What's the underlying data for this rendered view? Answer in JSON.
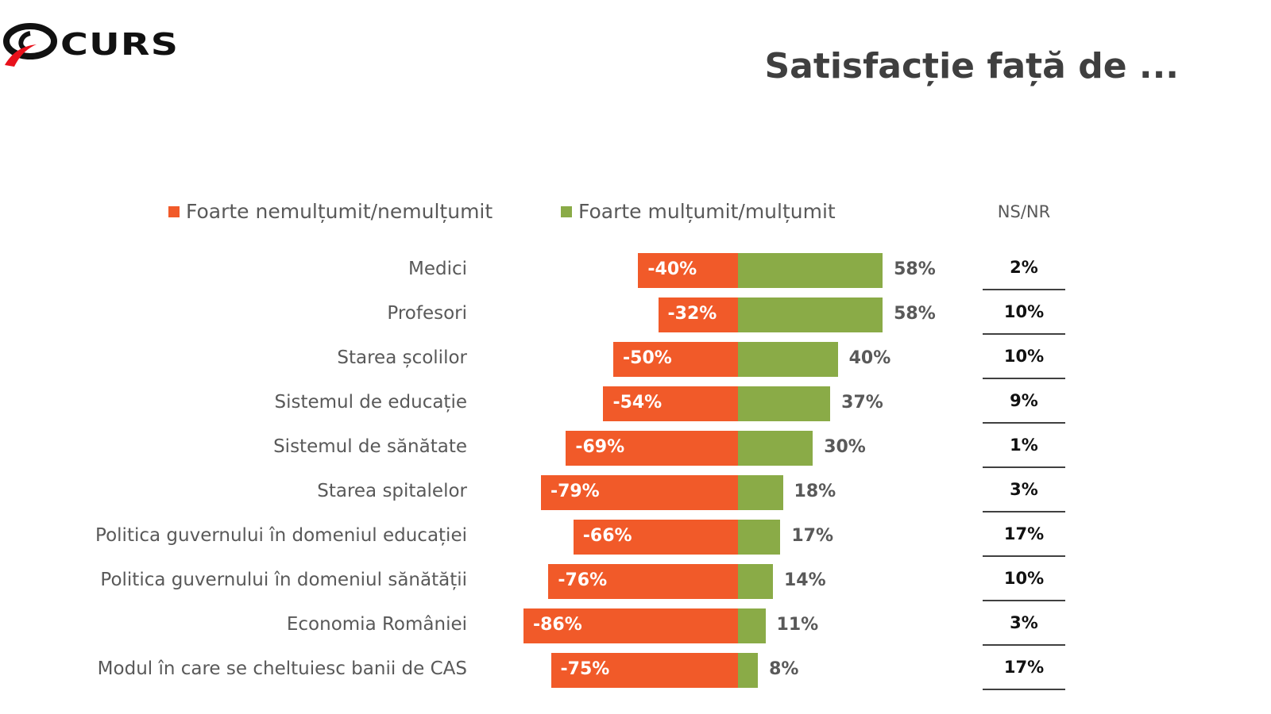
{
  "logo": {
    "text": "CURS"
  },
  "chart_data": {
    "type": "bar",
    "title": "Satisfacție față de ...",
    "legend": [
      "Foarte nemulțumit/nemulțumit",
      "Foarte mulțumit/mulțumit"
    ],
    "ns_header": "NS/NR",
    "colors": {
      "negative": "#f15a29",
      "positive": "#8aab47"
    },
    "categories": [
      "Medici",
      "Profesori",
      "Starea școlilor",
      "Sistemul de educație",
      "Sistemul de sănătate",
      "Starea spitalelor",
      "Politica guvernului în domeniul educației",
      "Politica guvernului în domeniul sănătății",
      "Economia României",
      "Modul în care se cheltuiesc banii de CAS"
    ],
    "series": [
      {
        "name": "Foarte nemulțumit/nemulțumit",
        "values": [
          -40,
          -32,
          -50,
          -54,
          -69,
          -79,
          -66,
          -76,
          -86,
          -75
        ]
      },
      {
        "name": "Foarte mulțumit/mulțumit",
        "values": [
          58,
          58,
          40,
          37,
          30,
          18,
          17,
          14,
          11,
          8
        ]
      },
      {
        "name": "NS/NR",
        "values": [
          2,
          10,
          10,
          9,
          1,
          3,
          17,
          10,
          3,
          17
        ]
      }
    ],
    "labels": {
      "neg": [
        "-40%",
        "-32%",
        "-50%",
        "-54%",
        "-69%",
        "-79%",
        "-66%",
        "-76%",
        "-86%",
        "-75%"
      ],
      "pos": [
        "58%",
        "58%",
        "40%",
        "37%",
        "30%",
        "18%",
        "17%",
        "14%",
        "11%",
        "8%"
      ],
      "ns": [
        "2%",
        "10%",
        "10%",
        "9%",
        "1%",
        "3%",
        "17%",
        "10%",
        "3%",
        "17%"
      ]
    }
  }
}
